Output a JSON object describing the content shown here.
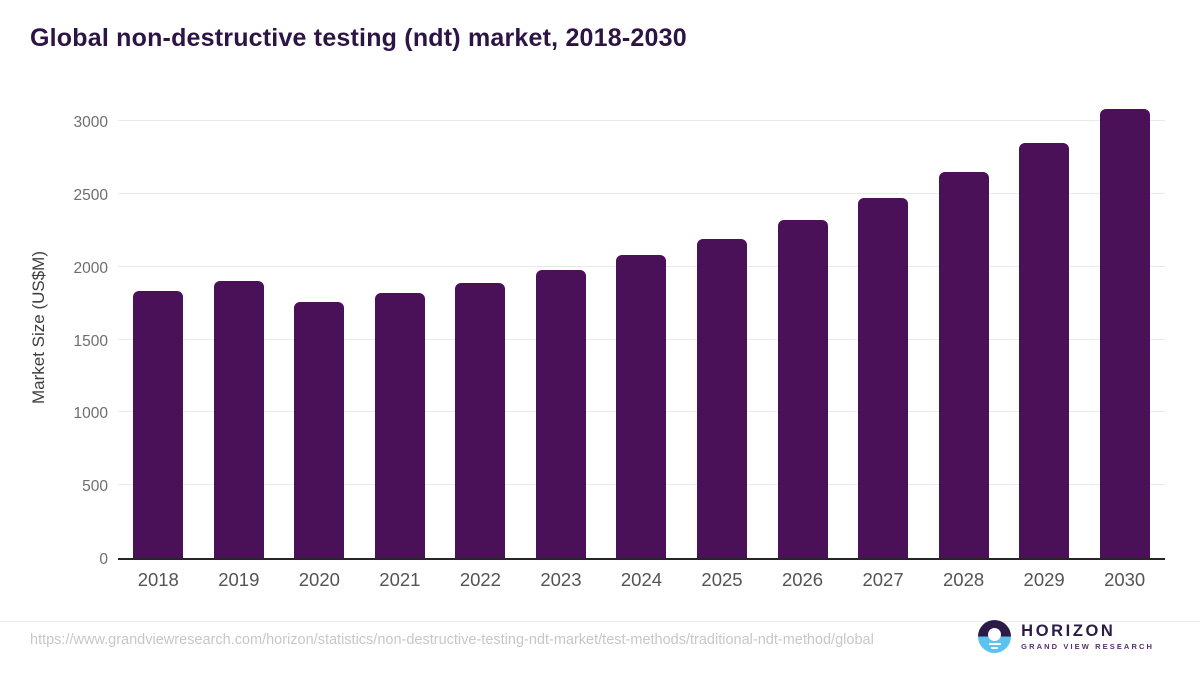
{
  "title": "Global non-destructive testing (ndt) market, 2018-2030",
  "chart_data": {
    "type": "bar",
    "title": "Global non-destructive testing (ndt) market, 2018-2030",
    "categories": [
      "2018",
      "2019",
      "2020",
      "2021",
      "2022",
      "2023",
      "2024",
      "2025",
      "2026",
      "2027",
      "2028",
      "2029",
      "2030"
    ],
    "values": [
      1835,
      1905,
      1755,
      1820,
      1890,
      1975,
      2080,
      2190,
      2320,
      2470,
      2650,
      2850,
      3080
    ],
    "xlabel": "",
    "ylabel": "Market Size (US$M)",
    "ylim": [
      0,
      3000
    ],
    "yticks": [
      0,
      500,
      1000,
      1500,
      2000,
      2500,
      3000
    ],
    "grid": "horizontal",
    "legend": "none",
    "bar_color": "#4a1058"
  },
  "colors": {
    "bar": "#4a1058",
    "title": "#2d1445",
    "gridline": "#e9e9ec",
    "axis_line": "#262626",
    "y_tick_text": "#6e6e6e",
    "x_label_text": "#545454",
    "url_text": "#c7c7c7",
    "logo_purple": "#2d1b47",
    "logo_blue": "#5bc3ee"
  },
  "footer": {
    "source_url": "https://www.grandviewresearch.com/horizon/statistics/non-destructive-testing-ndt-market/test-methods/traditional-ndt-method/global",
    "logo_name": "HORIZON",
    "logo_subtitle": "GRAND VIEW RESEARCH"
  }
}
